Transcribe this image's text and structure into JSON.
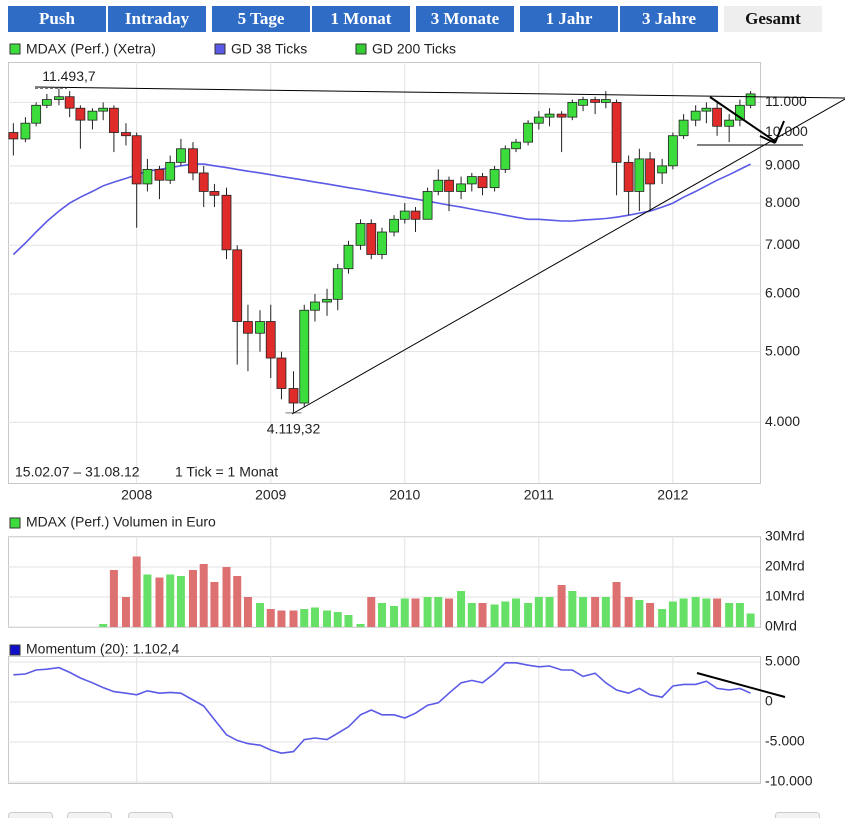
{
  "tabs": [
    "Push",
    "Intraday",
    "5 Tage",
    "1 Monat",
    "3 Monate",
    "1 Jahr",
    "3 Jahre",
    "Gesamt"
  ],
  "chart_data": [
    {
      "type": "candlestick",
      "log": true,
      "grid": true,
      "period": "15.02.07 – 31.08.12",
      "tick_note": "1 Tick = 1 Monat",
      "up_color": "#3ddc3d",
      "down_color": "#e02b2b",
      "series": [
        {
          "name": "MDAX (Perf.) (Xetra)",
          "color": "#3ddc3d"
        },
        {
          "name": "GD 38 Ticks",
          "color": "#5a5ae6",
          "values": [
            6800,
            7050,
            7300,
            7550,
            7800,
            8000,
            8150,
            8300,
            8450,
            8550,
            8650,
            8750,
            8850,
            8900,
            8950,
            9000,
            9050,
            9050,
            9000,
            8950,
            8900,
            8850,
            8800,
            8750,
            8700,
            8650,
            8600,
            8550,
            8500,
            8450,
            8400,
            8350,
            8300,
            8250,
            8200,
            8150,
            8100,
            8050,
            8000,
            7950,
            7900,
            7850,
            7800,
            7750,
            7700,
            7650,
            7600,
            7600,
            7580,
            7560,
            7560,
            7580,
            7600,
            7620,
            7650,
            7700,
            7750,
            7800,
            7900,
            8000,
            8150,
            8300,
            8450,
            8600,
            8750,
            8900,
            9050
          ]
        },
        {
          "name": "GD 200 Ticks",
          "color": "#33cc33"
        }
      ],
      "x": [
        2007.08,
        2007.17,
        2007.25,
        2007.33,
        2007.42,
        2007.5,
        2007.58,
        2007.67,
        2007.75,
        2007.83,
        2007.92,
        2008,
        2008.08,
        2008.17,
        2008.25,
        2008.33,
        2008.42,
        2008.5,
        2008.58,
        2008.67,
        2008.75,
        2008.83,
        2008.92,
        2009,
        2009.08,
        2009.17,
        2009.25,
        2009.33,
        2009.42,
        2009.5,
        2009.58,
        2009.67,
        2009.75,
        2009.83,
        2009.92,
        2010,
        2010.08,
        2010.17,
        2010.25,
        2010.33,
        2010.42,
        2010.5,
        2010.58,
        2010.67,
        2010.75,
        2010.83,
        2010.92,
        2011,
        2011.08,
        2011.17,
        2011.25,
        2011.33,
        2011.42,
        2011.5,
        2011.58,
        2011.67,
        2011.75,
        2011.83,
        2011.92,
        2012,
        2012.08,
        2012.17,
        2012.25,
        2012.33,
        2012.42,
        2012.5,
        2012.58
      ],
      "open": [
        10000,
        9800,
        10300,
        10900,
        11100,
        11200,
        10800,
        10400,
        10700,
        10800,
        10000,
        9900,
        8500,
        8900,
        8600,
        9100,
        9500,
        8800,
        8300,
        8200,
        6900,
        5500,
        5300,
        5500,
        4900,
        4450,
        4250,
        5700,
        5850,
        5900,
        6500,
        7000,
        7500,
        6800,
        7300,
        7600,
        7800,
        7600,
        8300,
        8600,
        8300,
        8500,
        8700,
        8400,
        8900,
        9500,
        9700,
        10300,
        10500,
        10600,
        10500,
        10900,
        11100,
        11000,
        11000,
        9100,
        8300,
        9200,
        8800,
        9000,
        9900,
        10400,
        10700,
        10800,
        10200,
        10400,
        10900
      ],
      "high": [
        10300,
        10500,
        11000,
        11300,
        11493.7,
        11400,
        10900,
        10800,
        11000,
        10900,
        10300,
        10000,
        9200,
        9000,
        9300,
        9800,
        9700,
        9000,
        8500,
        8400,
        7000,
        5800,
        5700,
        5800,
        5000,
        4700,
        5800,
        6000,
        6100,
        6600,
        7100,
        7600,
        7600,
        7400,
        7700,
        8000,
        7900,
        8400,
        8900,
        8700,
        8700,
        8800,
        8800,
        9000,
        9600,
        9800,
        10400,
        10700,
        10800,
        10700,
        11100,
        11200,
        11200,
        11400,
        11100,
        9300,
        9500,
        9400,
        9200,
        10000,
        10600,
        10900,
        11000,
        11000,
        10600,
        11100,
        11400
      ],
      "low": [
        9300,
        9700,
        10200,
        10800,
        10900,
        10500,
        9500,
        10100,
        10400,
        9400,
        9600,
        7400,
        8300,
        8100,
        8500,
        9000,
        8600,
        7900,
        7900,
        6700,
        4800,
        4700,
        5000,
        4600,
        4300,
        4119.32,
        4200,
        5500,
        5600,
        5700,
        6400,
        6900,
        6700,
        6700,
        7200,
        7500,
        7300,
        7600,
        8200,
        7800,
        8100,
        8300,
        8200,
        8300,
        8800,
        9400,
        9600,
        10100,
        10200,
        9400,
        10400,
        10700,
        10600,
        10800,
        8200,
        7700,
        7800,
        7800,
        8500,
        8900,
        9800,
        10200,
        10300,
        9900,
        9700,
        10200,
        10800
      ],
      "close": [
        9800,
        10300,
        10900,
        11100,
        11200,
        10800,
        10400,
        10700,
        10800,
        10000,
        9900,
        8500,
        8900,
        8600,
        9100,
        9500,
        8800,
        8300,
        8200,
        6900,
        5500,
        5300,
        5500,
        4900,
        4450,
        4250,
        5700,
        5850,
        5900,
        6500,
        7000,
        7500,
        6800,
        7300,
        7600,
        7800,
        7600,
        8300,
        8600,
        8300,
        8500,
        8700,
        8400,
        8900,
        9500,
        9700,
        10300,
        10500,
        10600,
        10500,
        11000,
        11100,
        11000,
        11100,
        9100,
        8300,
        9200,
        8500,
        9000,
        9900,
        10400,
        10700,
        10800,
        10200,
        10400,
        10900,
        11300
      ],
      "xlim": [
        2007.04,
        2012.65
      ],
      "xticks": [
        2008,
        2009,
        2010,
        2011,
        2012
      ],
      "ylim": [
        3300,
        12500
      ],
      "yticks": [
        {
          "value": 4000,
          "label": "4.000"
        },
        {
          "value": 5000,
          "label": "5.000"
        },
        {
          "value": 6000,
          "label": "6.000"
        },
        {
          "value": 7000,
          "label": "7.000"
        },
        {
          "value": 8000,
          "label": "8.000"
        },
        {
          "value": 9000,
          "label": "9.000"
        },
        {
          "value": 10000,
          "label": "10.000"
        },
        {
          "value": 11000,
          "label": "11.000"
        }
      ],
      "annotations": [
        {
          "x": 2007.42,
          "value": 11493.7,
          "label": "11.493,7"
        },
        {
          "x": 2009.17,
          "value": 4119.32,
          "label": "4.119,32"
        }
      ]
    },
    {
      "type": "bar",
      "title": "MDAX (Perf.) Volumen in Euro",
      "color": "#3ddc3d",
      "up_color": "#66e066",
      "down_color": "#dd7070",
      "values": [
        null,
        null,
        null,
        null,
        null,
        null,
        null,
        null,
        1,
        19,
        10,
        23.5,
        17.5,
        16.5,
        17.5,
        17,
        19,
        21,
        15,
        20,
        17,
        10,
        8,
        6,
        5.5,
        5.5,
        6,
        6.5,
        5.5,
        5,
        4,
        1,
        10,
        8,
        7,
        9.5,
        9.5,
        10,
        10,
        9.5,
        12,
        8,
        8,
        7.5,
        8.5,
        9.5,
        8,
        10,
        10,
        14,
        12,
        10,
        10,
        10,
        15,
        10,
        9,
        8,
        6,
        8.5,
        9.5,
        10,
        9.5,
        9.5,
        8,
        8,
        4.5
      ],
      "ylim": [
        0,
        30
      ],
      "yticks": [
        {
          "value": 0,
          "label": "0Mrd"
        },
        {
          "value": 10,
          "label": "10Mrd"
        },
        {
          "value": 20,
          "label": "20Mrd"
        },
        {
          "value": 30,
          "label": "30Mrd"
        }
      ]
    },
    {
      "type": "line",
      "title": "Momentum (20): 1.102,4",
      "color": "#5a5ae6",
      "legend_color": "#1010c8",
      "values": [
        3400,
        3500,
        4000,
        4100,
        4300,
        3700,
        3000,
        2400,
        1800,
        1300,
        1100,
        900,
        1400,
        1100,
        1200,
        1100,
        250,
        -500,
        -2200,
        -4100,
        -4800,
        -5200,
        -5400,
        -6000,
        -6400,
        -6200,
        -4700,
        -4500,
        -4700,
        -3900,
        -3100,
        -1600,
        -1000,
        -1600,
        -1600,
        -2000,
        -1400,
        -400,
        -100,
        1100,
        2400,
        2700,
        2400,
        3600,
        4900,
        4900,
        4600,
        4400,
        4500,
        4000,
        4000,
        3200,
        3600,
        2400,
        1500,
        1100,
        1700,
        900,
        600,
        2000,
        2200,
        2200,
        2600,
        1700,
        1500,
        1700,
        1102.4
      ],
      "ylim": [
        -10125,
        5750
      ],
      "yticks": [
        {
          "value": -10000,
          "label": "-10.000"
        },
        {
          "value": -5000,
          "label": "-5.000"
        },
        0,
        {
          "value": 5000,
          "label": "5.000"
        }
      ]
    }
  ]
}
